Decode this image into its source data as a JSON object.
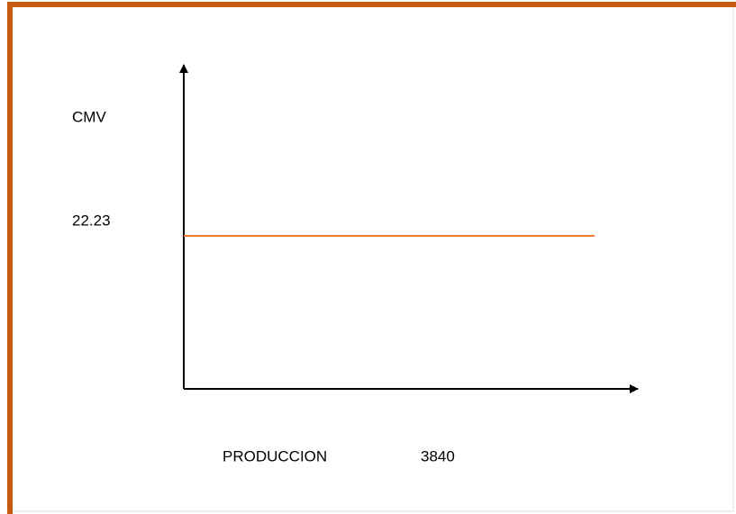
{
  "diagram": {
    "y_axis_label": "CMV",
    "level_label": "22.23",
    "x_axis_label": "PRODUCCION",
    "x_value_label": "3840"
  }
}
